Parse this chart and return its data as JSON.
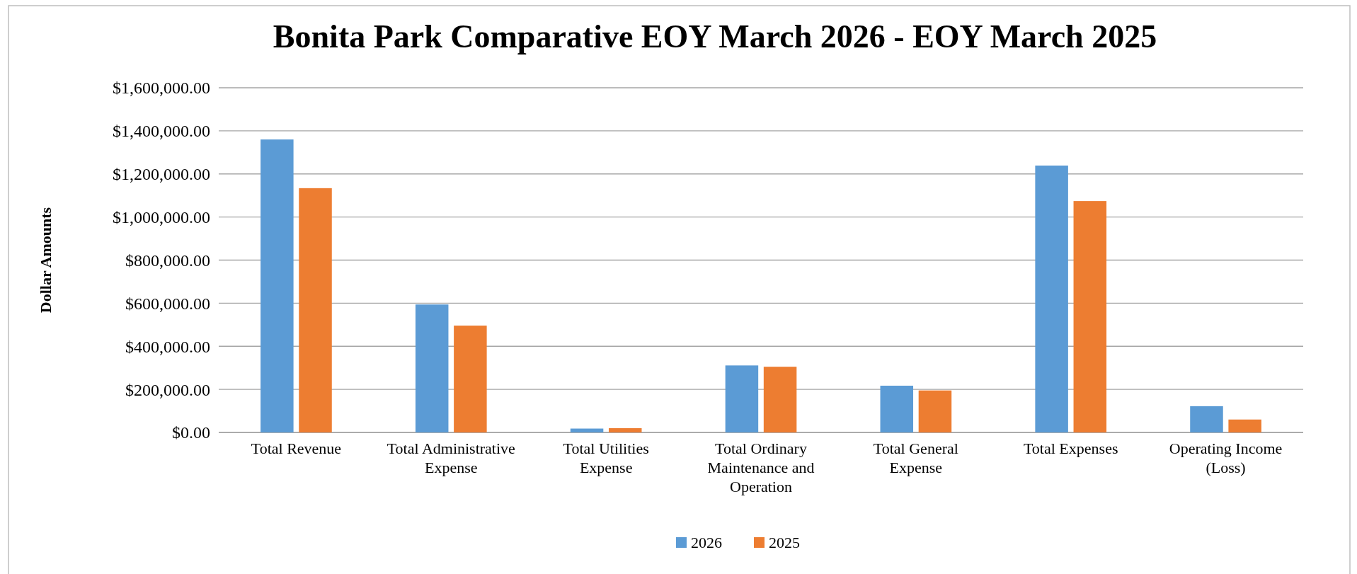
{
  "chart_data": {
    "type": "bar",
    "title": "Bonita Park Comparative EOY March 2026 - EOY March 2025",
    "ylabel": "Dollar Amounts",
    "categories": [
      "Total Revenue",
      "Total Administrative Expense",
      "Total Utilities Expense",
      "Total Ordinary Maintenance and Operation",
      "Total General Expense",
      "Total Expenses",
      "Operating Income (Loss)"
    ],
    "series": [
      {
        "name": "2026",
        "color": "#5b9bd5",
        "values": [
          1360000,
          594000,
          18000,
          311000,
          217000,
          1239000,
          122000
        ]
      },
      {
        "name": "2025",
        "color": "#ed7d31",
        "values": [
          1134000,
          496000,
          20000,
          305000,
          195000,
          1074000,
          60000
        ]
      }
    ],
    "ylim": [
      0,
      1600000
    ],
    "yticks": [
      {
        "value": 0,
        "label": "$0.00"
      },
      {
        "value": 200000,
        "label": "$200,000.00"
      },
      {
        "value": 400000,
        "label": "$400,000.00"
      },
      {
        "value": 600000,
        "label": "$600,000.00"
      },
      {
        "value": 800000,
        "label": "$800,000.00"
      },
      {
        "value": 1000000,
        "label": "$1,000,000.00"
      },
      {
        "value": 1200000,
        "label": "$1,200,000.00"
      },
      {
        "value": 1400000,
        "label": "$1,400,000.00"
      },
      {
        "value": 1600000,
        "label": "$1,600,000.00"
      }
    ],
    "grid": "y",
    "legend": "bottom"
  }
}
